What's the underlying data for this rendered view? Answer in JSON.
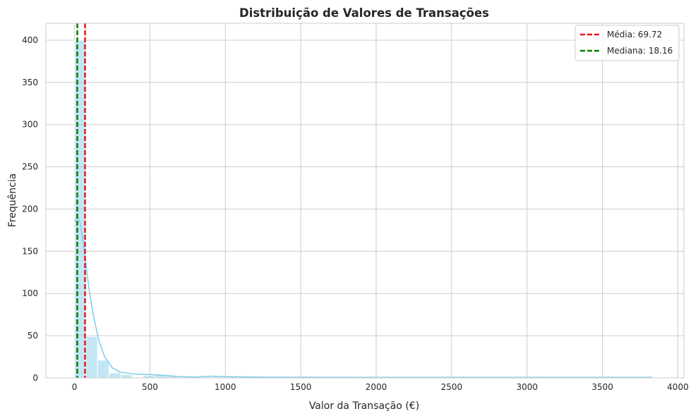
{
  "chart_data": {
    "type": "bar",
    "title": "Distribuição de Valores de Transações",
    "xlabel": "Valor da Transação (€)",
    "ylabel": "Frequência",
    "xlim": [
      -190,
      4040
    ],
    "ylim": [
      0,
      420
    ],
    "xticks": [
      0,
      500,
      1000,
      1500,
      2000,
      2500,
      3000,
      3500,
      4000
    ],
    "yticks": [
      0,
      50,
      100,
      150,
      200,
      250,
      300,
      350,
      400
    ],
    "grid": true,
    "legend_position": "top-right",
    "histogram": {
      "bin_width": 76,
      "bin_start": 0,
      "counts": [
        400,
        49,
        21,
        6,
        4,
        0,
        3,
        4,
        2,
        0,
        0,
        1,
        1,
        1,
        1,
        1,
        1,
        1,
        0,
        1,
        1,
        1,
        1,
        1,
        1,
        1,
        1,
        1,
        1,
        1,
        1,
        1,
        1,
        1,
        1,
        1,
        1,
        1,
        1,
        1,
        1,
        1,
        1,
        1,
        1,
        1,
        1,
        1,
        1,
        1
      ],
      "color": "#87ceeb"
    },
    "kde": {
      "x": [
        0,
        20,
        40,
        60,
        80,
        100,
        130,
        160,
        200,
        250,
        300,
        400,
        500,
        600,
        700,
        800,
        900,
        1000,
        1200,
        1500,
        2000,
        2500,
        3000,
        3500,
        3830
      ],
      "y": [
        185,
        192,
        182,
        158,
        128,
        100,
        70,
        45,
        25,
        12,
        7,
        4.5,
        4,
        3,
        1.5,
        1,
        2,
        1.5,
        1,
        0.8,
        0.7,
        0.7,
        0.7,
        0.7,
        0.7
      ],
      "color": "#87ceeb"
    },
    "reference_lines": [
      {
        "name": "Média: 69.72",
        "x": 69.72,
        "color": "#e41a1c",
        "style": "dashed"
      },
      {
        "name": "Mediana: 18.16",
        "x": 18.16,
        "color": "#008000",
        "style": "dashed"
      }
    ],
    "colors": {
      "axes_edge": "#cccccc",
      "grid": "#cccccc",
      "text": "#262626"
    }
  }
}
